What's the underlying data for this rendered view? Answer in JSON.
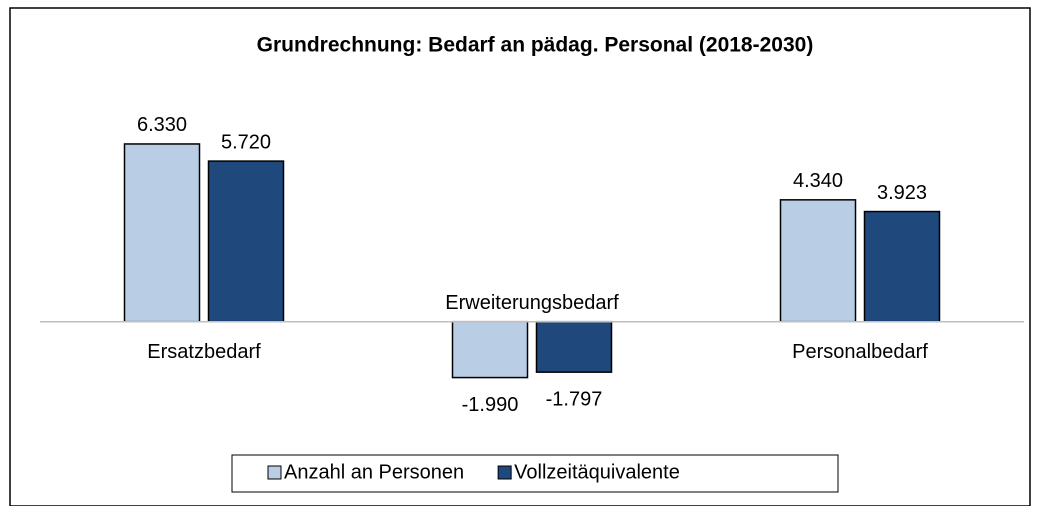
{
  "chart_data": {
    "type": "bar",
    "title": "Grundrechnung:  Bedarf an pädag. Personal (2018-2030)",
    "categories": [
      "Ersatzbedarf",
      "Erweiterungsbedarf",
      "Personalbedarf"
    ],
    "series": [
      {
        "name": "Anzahl an Personen",
        "color": "#b9cde5",
        "values": [
          6330,
          -1990,
          4340
        ],
        "value_labels": [
          "6.330",
          "-1.990",
          "4.340"
        ]
      },
      {
        "name": "Vollzeitäquivalente",
        "color": "#1f497d",
        "values": [
          5720,
          -1797,
          3923
        ],
        "value_labels": [
          "5.720",
          "-1.797",
          "3.923"
        ]
      }
    ],
    "ylim": [
      -4000,
      9000
    ],
    "legend": "bottom"
  }
}
